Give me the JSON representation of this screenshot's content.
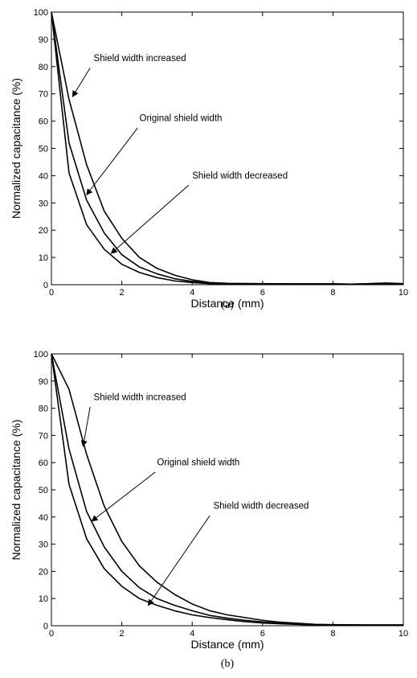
{
  "chart_data": [
    {
      "type": "line",
      "caption": "(a)",
      "xlabel": "Distance (mm)",
      "ylabel": "Normalized capacitance (%)",
      "xlim": [
        0,
        10
      ],
      "ylim": [
        0,
        100
      ],
      "xticks": [
        0,
        2,
        4,
        6,
        8,
        10
      ],
      "yticks": [
        0,
        10,
        20,
        30,
        40,
        50,
        60,
        70,
        80,
        90,
        100
      ],
      "grid": false,
      "x": [
        0,
        0.5,
        1,
        1.5,
        2,
        2.5,
        3,
        3.5,
        4,
        4.5,
        5,
        6,
        7,
        8,
        8.5,
        9,
        9.5,
        10
      ],
      "series": [
        {
          "name": "Shield width increased",
          "values": [
            100,
            68,
            44,
            27,
            17,
            10,
            6,
            3.5,
            1.8,
            0.8,
            0.5,
            0.4,
            0.3,
            0.3,
            0.2,
            0.4,
            0.6,
            0.4
          ]
        },
        {
          "name": "Original shield width",
          "values": [
            100,
            52,
            31,
            19,
            11,
            6.5,
            4,
            2.2,
            1.2,
            0.6,
            0.4,
            0.3,
            0.3,
            0.3,
            0.2,
            0.3,
            0.5,
            0.3
          ]
        },
        {
          "name": "Shield width decreased",
          "values": [
            100,
            41,
            22,
            13,
            7.5,
            4.5,
            2.6,
            1.4,
            0.8,
            0.4,
            0.3,
            0.3,
            0.2,
            0.2,
            0.1,
            0.2,
            0.4,
            0.3
          ]
        }
      ],
      "annotations": [
        {
          "text": "Shield width increased",
          "text_x": 1.2,
          "text_y": 82,
          "arrow_from": [
            1.1,
            79.5
          ],
          "arrow_to": [
            0.6,
            69
          ]
        },
        {
          "text": "Original shield width",
          "text_x": 2.5,
          "text_y": 60,
          "arrow_from": [
            2.45,
            57.5
          ],
          "arrow_to": [
            1.0,
            33
          ]
        },
        {
          "text": "Shield width decreased",
          "text_x": 4.0,
          "text_y": 39,
          "arrow_from": [
            3.9,
            36.5
          ],
          "arrow_to": [
            1.7,
            11.5
          ]
        }
      ]
    },
    {
      "type": "line",
      "caption": "(b)",
      "xlabel": "Distance (mm)",
      "ylabel": "Normalized capacitance (%)",
      "xlim": [
        0,
        10
      ],
      "ylim": [
        0,
        100
      ],
      "xticks": [
        0,
        2,
        4,
        6,
        8,
        10
      ],
      "yticks": [
        0,
        10,
        20,
        30,
        40,
        50,
        60,
        70,
        80,
        90,
        100
      ],
      "grid": false,
      "x": [
        0,
        0.5,
        1,
        1.5,
        2,
        2.5,
        3,
        3.5,
        4,
        4.5,
        5,
        5.5,
        6,
        6.5,
        7,
        7.5,
        8,
        9,
        10
      ],
      "series": [
        {
          "name": "Shield width increased",
          "values": [
            100,
            87,
            63,
            44,
            31,
            22,
            16,
            11.5,
            8,
            5.5,
            4,
            3,
            2,
            1.3,
            0.9,
            0.5,
            0.4,
            0.3,
            0.3
          ]
        },
        {
          "name": "Original shield width",
          "values": [
            100,
            65,
            42,
            29,
            20,
            14,
            10,
            7.5,
            5.5,
            3.8,
            2.8,
            2,
            1.4,
            0.9,
            0.6,
            0.4,
            0.3,
            0.3,
            0.3
          ]
        },
        {
          "name": "Shield width decreased",
          "values": [
            100,
            52,
            32,
            21,
            14.5,
            10,
            7.5,
            5.5,
            4,
            3,
            2.2,
            1.5,
            1,
            0.7,
            0.5,
            0.3,
            0.3,
            0.2,
            0.2
          ]
        }
      ],
      "annotations": [
        {
          "text": "Shield width increased",
          "text_x": 1.2,
          "text_y": 83,
          "arrow_from": [
            1.1,
            80.5
          ],
          "arrow_to": [
            0.9,
            66
          ]
        },
        {
          "text": "Original shield width",
          "text_x": 3.0,
          "text_y": 59,
          "arrow_from": [
            2.95,
            56.5
          ],
          "arrow_to": [
            1.15,
            38.5
          ]
        },
        {
          "text": "Shield width decreased",
          "text_x": 4.6,
          "text_y": 43,
          "arrow_from": [
            4.5,
            40.5
          ],
          "arrow_to": [
            2.75,
            7.5
          ]
        }
      ]
    }
  ]
}
